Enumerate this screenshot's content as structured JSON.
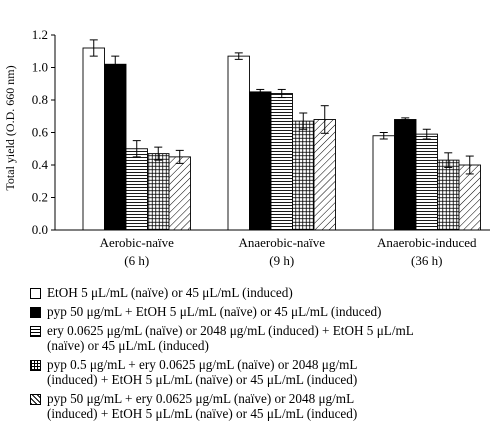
{
  "chart_data": {
    "type": "bar",
    "ylabel": "Total yield (O.D. 660 nm)",
    "ylim": [
      0,
      1.2
    ],
    "yticks": [
      "0.0",
      "0.2",
      "0.4",
      "0.6",
      "0.8",
      "1.0",
      "1.2"
    ],
    "categories": [
      {
        "line1": "Aerobic-naïve",
        "line2": "(6 h)"
      },
      {
        "line1": "Anaerobic-naïve",
        "line2": "(9 h)"
      },
      {
        "line1": "Anaerobic-induced",
        "line2": "(36 h)"
      }
    ],
    "series": [
      {
        "name": "EtOH 5 μL/mL (naïve) or 45 μL/mL (induced)",
        "lines": [
          "EtOH 5 μL/mL (naïve) or 45 μL/mL (induced)"
        ],
        "pattern": "white",
        "values": [
          1.12,
          1.07,
          0.58
        ],
        "errors": [
          0.05,
          0.02,
          0.02
        ]
      },
      {
        "name": "pyp 50 μg/mL + EtOH 5 μL/mL (naïve) or 45 μL/mL (induced)",
        "lines": [
          "pyp 50 μg/mL + EtOH 5 μL/mL (naïve) or 45 μL/mL (induced)"
        ],
        "pattern": "black",
        "values": [
          1.02,
          0.85,
          0.68
        ],
        "errors": [
          0.05,
          0.015,
          0.01
        ]
      },
      {
        "name": "ery 0.0625 μg/mL (naïve) or 2048 μg/mL (induced) + EtOH 5 μL/mL (naïve) or 45 μL/mL (induced)",
        "lines": [
          "ery 0.0625 μg/mL (naïve) or 2048 μg/mL (induced) + EtOH 5 μL/mL",
          "(naïve) or 45 μL/mL (induced)"
        ],
        "pattern": "hlines",
        "values": [
          0.5,
          0.84,
          0.59
        ],
        "errors": [
          0.05,
          0.025,
          0.03
        ]
      },
      {
        "name": "pyp 0.5 μg/mL + ery 0.0625 μg/mL (naïve) or 2048 μg/mL (induced) + EtOH 5 μL/mL (naïve) or 45 μL/mL (induced)",
        "lines": [
          "pyp 0.5 μg/mL + ery 0.0625 μg/mL (naïve) or 2048 μg/mL",
          "(induced) + EtOH 5 μL/mL (naïve) or 45 μL/mL (induced)"
        ],
        "pattern": "grid",
        "values": [
          0.47,
          0.67,
          0.43
        ],
        "errors": [
          0.04,
          0.05,
          0.045
        ]
      },
      {
        "name": "pyp 50 μg/mL + ery 0.0625 μg/mL (naïve) or 2048 μg/mL (induced) + EtOH 5 μL/mL (naïve) or 45 μL/mL (induced)",
        "lines": [
          "pyp 50 μg/mL + ery 0.0625 μg/mL (naïve) or 2048 μg/mL",
          "(induced) + EtOH 5 μL/mL (naïve) or 45 μL/mL (induced)"
        ],
        "pattern": "diag",
        "values": [
          0.45,
          0.68,
          0.4
        ],
        "errors": [
          0.04,
          0.085,
          0.055
        ]
      }
    ]
  }
}
